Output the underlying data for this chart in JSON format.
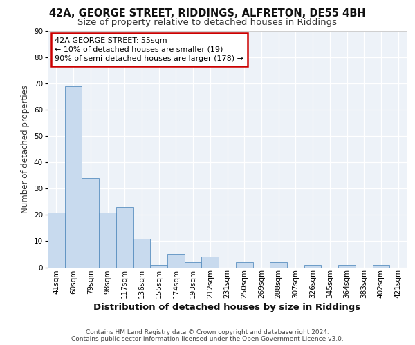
{
  "title1": "42A, GEORGE STREET, RIDDINGS, ALFRETON, DE55 4BH",
  "title2": "Size of property relative to detached houses in Riddings",
  "xlabel": "Distribution of detached houses by size in Riddings",
  "ylabel": "Number of detached properties",
  "categories": [
    "41sqm",
    "60sqm",
    "79sqm",
    "98sqm",
    "117sqm",
    "136sqm",
    "155sqm",
    "174sqm",
    "193sqm",
    "212sqm",
    "231sqm",
    "250sqm",
    "269sqm",
    "288sqm",
    "307sqm",
    "326sqm",
    "345sqm",
    "364sqm",
    "383sqm",
    "402sqm",
    "421sqm"
  ],
  "values": [
    21,
    69,
    34,
    21,
    23,
    11,
    1,
    5,
    2,
    4,
    0,
    2,
    0,
    2,
    0,
    1,
    0,
    1,
    0,
    1,
    0
  ],
  "bar_color": "#c8daee",
  "bar_edge_color": "#5a8fc0",
  "ylim": [
    0,
    90
  ],
  "yticks": [
    0,
    10,
    20,
    30,
    40,
    50,
    60,
    70,
    80,
    90
  ],
  "annotation_line1": "42A GEORGE STREET: 55sqm",
  "annotation_line2": "← 10% of detached houses are smaller (19)",
  "annotation_line3": "90% of semi-detached houses are larger (178) →",
  "annotation_box_fc": "#ffffff",
  "annotation_box_ec": "#cc0000",
  "footer_text": "Contains HM Land Registry data © Crown copyright and database right 2024.\nContains public sector information licensed under the Open Government Licence v3.0.",
  "bg_color": "#edf2f8",
  "grid_color": "#ffffff",
  "title1_fontsize": 10.5,
  "title2_fontsize": 9.5,
  "xlabel_fontsize": 9.5,
  "ylabel_fontsize": 8.5,
  "tick_fontsize": 7.5,
  "footer_fontsize": 6.5,
  "ann_fontsize": 8
}
